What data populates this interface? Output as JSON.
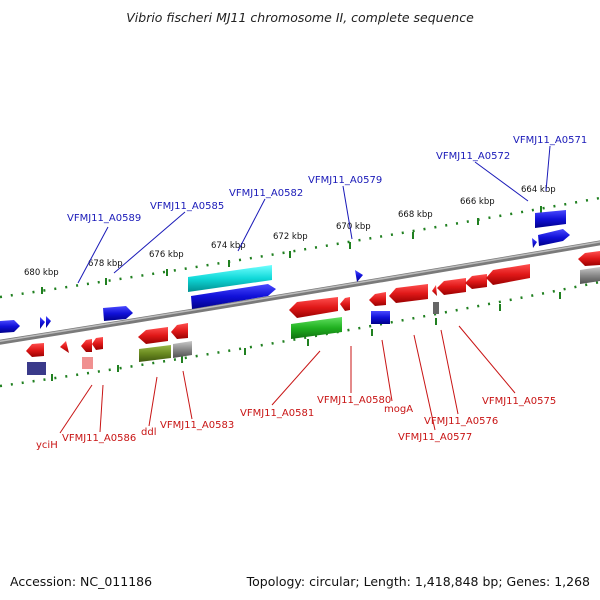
{
  "title": "Vibrio fischeri MJ11 chromosome II, complete sequence",
  "footer": {
    "accession": "Accession: NC_011186",
    "stats": "Topology: circular; Length: 1,418,848 bp; Genes: 1,268"
  },
  "ticks": [
    "680 kbp",
    "678 kbp",
    "676 kbp",
    "674 kbp",
    "672 kbp",
    "670 kbp",
    "668 kbp",
    "666 kbp",
    "664 kbp"
  ],
  "labels_top": [
    "VFMJ11_A0589",
    "VFMJ11_A0585",
    "VFMJ11_A0582",
    "VFMJ11_A0579",
    "VFMJ11_A0572",
    "VFMJ11_A0571"
  ],
  "labels_bottom": [
    "yciH",
    "VFMJ11_A0586",
    "ddl",
    "VFMJ11_A0583",
    "VFMJ11_A0581",
    "VFMJ11_A0580",
    "mogA",
    "VFMJ11_A0577",
    "VFMJ11_A0576",
    "VFMJ11_A0575"
  ],
  "colors": {
    "forward_gene": "#1010d8",
    "reverse_gene": "#e01818",
    "rna_cyan": "#10d8d8",
    "green": "#20b020",
    "olive": "#6a8a20",
    "gray": "#888888",
    "backbone": "#888888",
    "tick": "#208020"
  }
}
